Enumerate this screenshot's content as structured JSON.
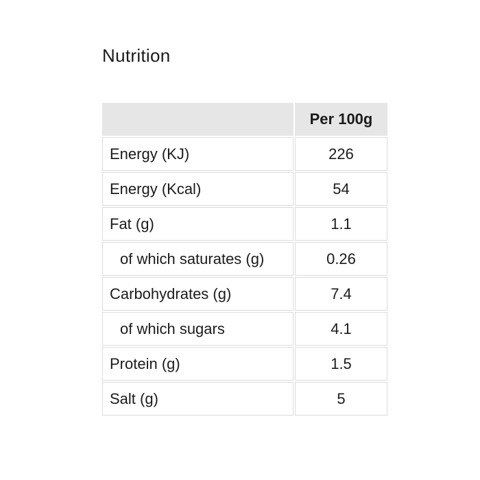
{
  "page": {
    "heading": "Nutrition",
    "background_color": "#ffffff"
  },
  "table": {
    "value_header": "Per 100g",
    "rows": [
      {
        "label": "Energy (KJ)",
        "value": "226",
        "indent": false
      },
      {
        "label": "Energy (Kcal)",
        "value": "54",
        "indent": false
      },
      {
        "label": "Fat (g)",
        "value": "1.1",
        "indent": false
      },
      {
        "label": "of which saturates (g)",
        "value": "0.26",
        "indent": true
      },
      {
        "label": "Carbohydrates (g)",
        "value": "7.4",
        "indent": false
      },
      {
        "label": "of which sugars",
        "value": "4.1",
        "indent": true
      },
      {
        "label": "Protein (g)",
        "value": "1.5",
        "indent": false
      },
      {
        "label": "Salt (g)",
        "value": "5",
        "indent": false
      }
    ],
    "colors": {
      "header_bg": "#e6e6e6",
      "cell_border": "#dbdbdb",
      "text": "#1b1b1b"
    }
  }
}
